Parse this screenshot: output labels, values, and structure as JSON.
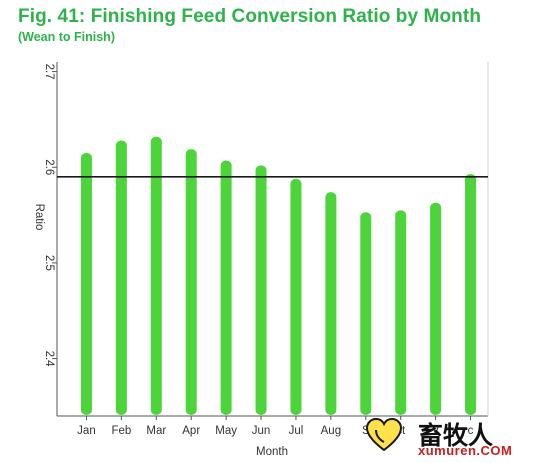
{
  "title": "Fig. 41: Finishing Feed Conversion Ratio by Month",
  "subtitle": "(Wean to Finish)",
  "watermark": {
    "chinese": "畜牧人",
    "url": "xumuren.COM"
  },
  "colors": {
    "title": "#2db34a",
    "bars": "#4cd43a",
    "reference_line": "#1a1a1a",
    "axis": "#555555"
  },
  "chart_data": {
    "type": "bar",
    "xlabel": "Month",
    "ylabel": "Ratio",
    "categories": [
      "Jan",
      "Feb",
      "Mar",
      "Apr",
      "May",
      "Jun",
      "Jul",
      "Aug",
      "Sep",
      "Oct",
      "Nov",
      "Dec"
    ],
    "category_labels_shown": [
      "Jan",
      "Feb",
      "Mar",
      "Apr",
      "May",
      "Jun",
      "Jul",
      "Aug",
      "S",
      "ct",
      "v",
      "c"
    ],
    "values": [
      2.615,
      2.628,
      2.632,
      2.619,
      2.607,
      2.602,
      2.588,
      2.574,
      2.553,
      2.555,
      2.563,
      2.593
    ],
    "ylim": [
      2.34,
      2.71
    ],
    "yticks": [
      2.4,
      2.5,
      2.6,
      2.7
    ],
    "ytick_labels": [
      "2.4",
      "2.5",
      "2.6",
      "2.7"
    ],
    "reference_line": 2.59,
    "grid": false,
    "legend": "none"
  }
}
